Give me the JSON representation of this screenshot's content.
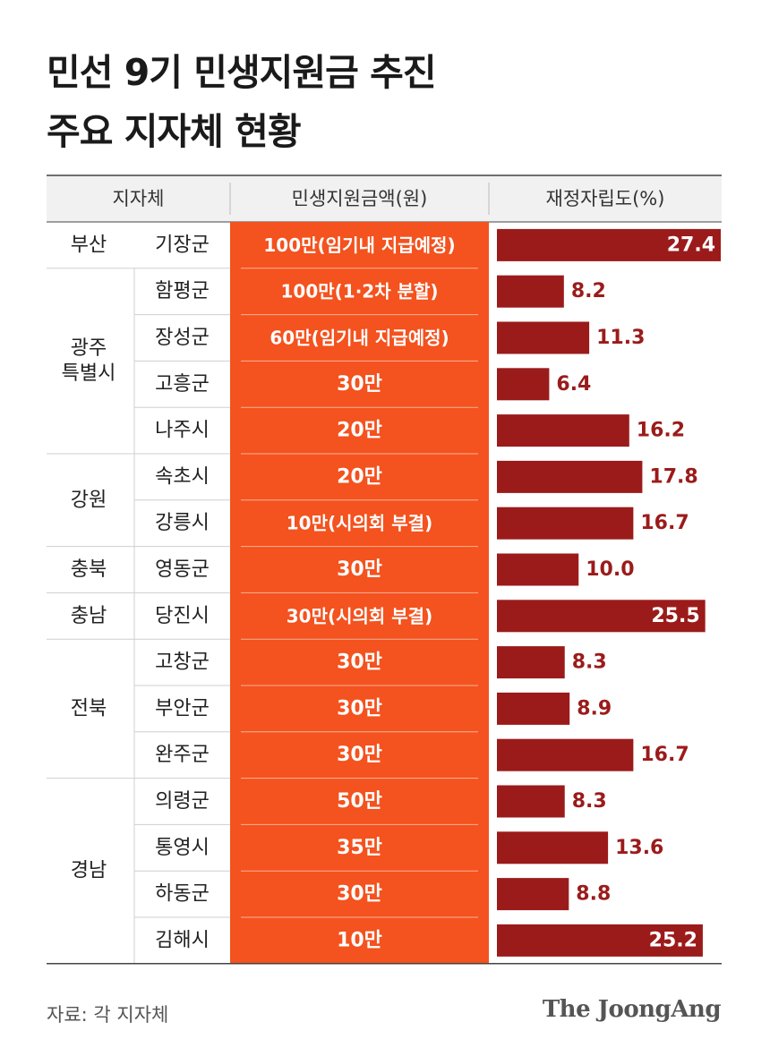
{
  "title_lines": [
    "민선 9기 민생지원금 추진",
    "주요 지자체 현황"
  ],
  "colors": {
    "orange": "#f4521e",
    "bar": "#9b1b1b",
    "header_bg": "#f1f1f1",
    "value_on_bar": "#ffffff",
    "value_off_bar": "#9b1b1b"
  },
  "chart_data": {
    "type": "table",
    "columns": [
      "지자체",
      "민생지원금액(원)",
      "재정자립도(%)"
    ],
    "groups": [
      {
        "region": "부산",
        "start": 0,
        "count": 1
      },
      {
        "region": "광주\n특별시",
        "start": 1,
        "count": 4
      },
      {
        "region": "강원",
        "start": 5,
        "count": 2
      },
      {
        "region": "충북",
        "start": 7,
        "count": 1
      },
      {
        "region": "충남",
        "start": 8,
        "count": 1
      },
      {
        "region": "전북",
        "start": 9,
        "count": 3
      },
      {
        "region": "경남",
        "start": 12,
        "count": 4
      }
    ],
    "rows": [
      {
        "district": "기장군",
        "amount": "100만(임기내 지급예정)",
        "fiscal": 27.4
      },
      {
        "district": "함평군",
        "amount": "100만(1·2차 분할)",
        "fiscal": 8.2
      },
      {
        "district": "장성군",
        "amount": "60만(임기내 지급예정)",
        "fiscal": 11.3
      },
      {
        "district": "고흥군",
        "amount": "30만",
        "fiscal": 6.4
      },
      {
        "district": "나주시",
        "amount": "20만",
        "fiscal": 16.2
      },
      {
        "district": "속초시",
        "amount": "20만",
        "fiscal": 17.8
      },
      {
        "district": "강릉시",
        "amount": "10만(시의회 부결)",
        "fiscal": 16.7
      },
      {
        "district": "영동군",
        "amount": "30만",
        "fiscal": 10.0
      },
      {
        "district": "당진시",
        "amount": "30만(시의회 부결)",
        "fiscal": 25.5
      },
      {
        "district": "고창군",
        "amount": "30만",
        "fiscal": 8.3
      },
      {
        "district": "부안군",
        "amount": "30만",
        "fiscal": 8.9
      },
      {
        "district": "완주군",
        "amount": "30만",
        "fiscal": 16.7
      },
      {
        "district": "의령군",
        "amount": "50만",
        "fiscal": 8.3
      },
      {
        "district": "통영시",
        "amount": "35만",
        "fiscal": 13.6
      },
      {
        "district": "하동군",
        "amount": "30만",
        "fiscal": 8.8
      },
      {
        "district": "김해시",
        "amount": "10만",
        "fiscal": 25.2
      }
    ],
    "fiscal_max": 27.4
  },
  "source": "자료: 각 지자체",
  "logo": "The JoongAng"
}
